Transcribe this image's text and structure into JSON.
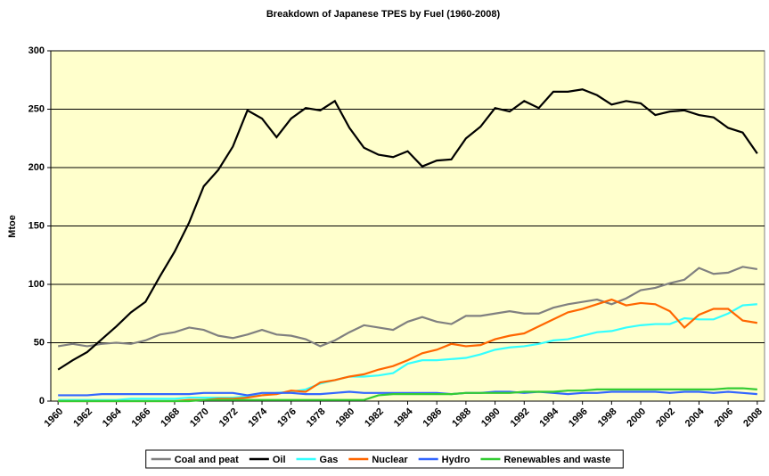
{
  "chart_data": {
    "type": "line",
    "title": "Breakdown of Japanese TPES by Fuel (1960-2008)",
    "ylabel": "Mtoe",
    "x": [
      1960,
      1961,
      1962,
      1963,
      1964,
      1965,
      1966,
      1967,
      1968,
      1969,
      1970,
      1971,
      1972,
      1973,
      1974,
      1975,
      1976,
      1977,
      1978,
      1979,
      1980,
      1981,
      1982,
      1983,
      1984,
      1985,
      1986,
      1987,
      1988,
      1989,
      1990,
      1991,
      1992,
      1993,
      1994,
      1995,
      1996,
      1997,
      1998,
      1999,
      2000,
      2001,
      2002,
      2003,
      2004,
      2005,
      2006,
      2007,
      2008
    ],
    "xlim": [
      1959.5,
      2008.5
    ],
    "xticks": [
      1960,
      1962,
      1964,
      1966,
      1968,
      1970,
      1972,
      1974,
      1976,
      1978,
      1980,
      1982,
      1984,
      1986,
      1988,
      1990,
      1992,
      1994,
      1996,
      1998,
      2000,
      2002,
      2004,
      2006,
      2008
    ],
    "ylim": [
      0,
      300
    ],
    "yticks": [
      0,
      50,
      100,
      150,
      200,
      250,
      300
    ],
    "grid": true,
    "legend": "bottom",
    "series": [
      {
        "name": "Coal and peat",
        "color": "#808080",
        "values": [
          47,
          49,
          47,
          49,
          50,
          49,
          52,
          57,
          59,
          63,
          61,
          56,
          54,
          57,
          61,
          57,
          56,
          53,
          47,
          52,
          59,
          65,
          63,
          61,
          68,
          72,
          68,
          66,
          73,
          73,
          75,
          77,
          75,
          75,
          80,
          83,
          85,
          87,
          83,
          88,
          95,
          97,
          101,
          104,
          114,
          109,
          110,
          115,
          113
        ]
      },
      {
        "name": "Oil",
        "color": "#000000",
        "values": [
          27,
          35,
          42,
          53,
          64,
          76,
          85,
          107,
          128,
          153,
          184,
          198,
          218,
          249,
          242,
          226,
          242,
          251,
          249,
          257,
          234,
          217,
          211,
          209,
          214,
          201,
          206,
          207,
          225,
          235,
          251,
          248,
          257,
          251,
          265,
          265,
          267,
          262,
          254,
          257,
          255,
          245,
          248,
          249,
          245,
          243,
          234,
          230,
          212
        ]
      },
      {
        "name": "Gas",
        "color": "#33ffff",
        "values": [
          1,
          1,
          1,
          1,
          1,
          2,
          2,
          2,
          2,
          3,
          3,
          3,
          3,
          4,
          5,
          7,
          8,
          10,
          15,
          18,
          21,
          21,
          22,
          24,
          32,
          35,
          35,
          36,
          37,
          40,
          44,
          46,
          47,
          49,
          52,
          53,
          56,
          59,
          60,
          63,
          65,
          66,
          66,
          71,
          70,
          70,
          75,
          82,
          83
        ]
      },
      {
        "name": "Nuclear",
        "color": "#ff6600",
        "values": [
          0,
          0,
          0,
          0,
          0,
          0,
          0,
          0,
          0,
          1,
          1,
          2,
          2,
          3,
          5,
          6,
          9,
          8,
          16,
          18,
          21,
          23,
          27,
          30,
          35,
          41,
          44,
          49,
          47,
          48,
          53,
          56,
          58,
          64,
          70,
          76,
          79,
          83,
          87,
          82,
          84,
          83,
          77,
          63,
          74,
          79,
          79,
          69,
          67
        ]
      },
      {
        "name": "Hydro",
        "color": "#3366ff",
        "values": [
          5,
          5,
          5,
          6,
          6,
          6,
          6,
          6,
          6,
          6,
          7,
          7,
          7,
          5,
          7,
          7,
          7,
          6,
          6,
          7,
          8,
          7,
          7,
          7,
          7,
          7,
          7,
          6,
          7,
          7,
          8,
          8,
          7,
          8,
          7,
          6,
          7,
          7,
          8,
          8,
          8,
          8,
          7,
          8,
          8,
          7,
          8,
          7,
          6
        ]
      },
      {
        "name": "Renewables and waste",
        "color": "#33cc33",
        "values": [
          0,
          0,
          0,
          0,
          0,
          0,
          0,
          0,
          0,
          0,
          1,
          1,
          1,
          1,
          1,
          1,
          1,
          1,
          1,
          1,
          1,
          1,
          5,
          6,
          6,
          6,
          6,
          6,
          7,
          7,
          7,
          7,
          8,
          8,
          8,
          9,
          9,
          10,
          10,
          10,
          10,
          10,
          10,
          10,
          10,
          10,
          11,
          11,
          10
        ]
      }
    ]
  }
}
